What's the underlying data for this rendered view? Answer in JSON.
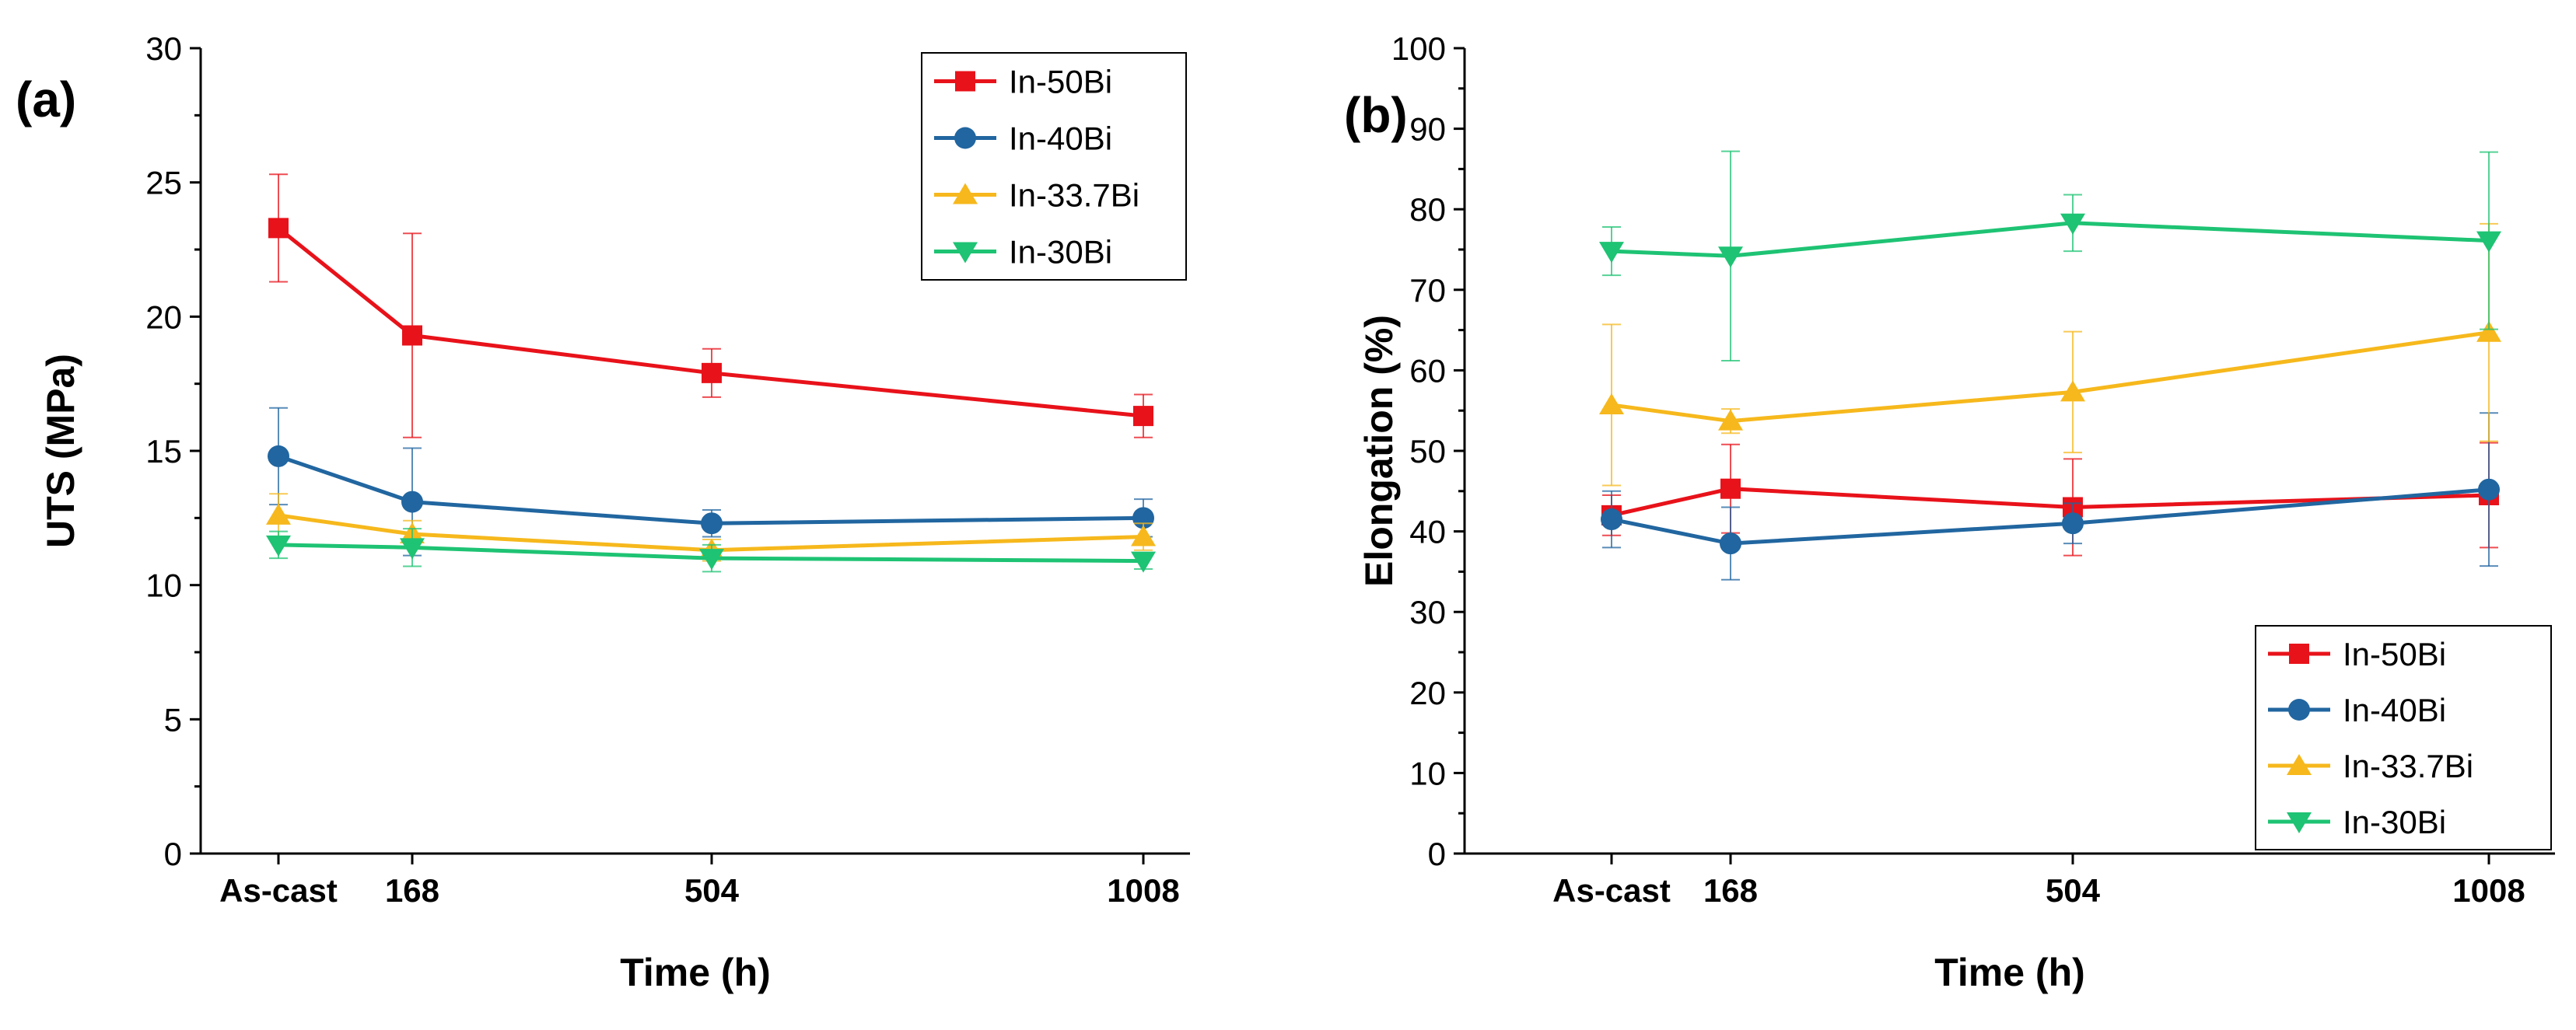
{
  "chart_data": [
    {
      "type": "line",
      "panel_label": "(a)",
      "title": "",
      "xlabel": "Time (h)",
      "ylabel": "UTS (MPa)",
      "x": [
        0,
        168,
        504,
        1008
      ],
      "x_tick_labels": [
        "As-cast",
        "168",
        "504",
        "1008"
      ],
      "ylim": [
        0,
        30
      ],
      "y_ticks": [
        0,
        5,
        10,
        15,
        20,
        25,
        30
      ],
      "legend_position": "top-right",
      "series": [
        {
          "name": "In-50Bi",
          "color": "#e8121a",
          "marker": "square",
          "values": [
            23.3,
            19.3,
            17.9,
            16.3
          ],
          "errors": [
            2.0,
            3.8,
            0.9,
            0.8
          ]
        },
        {
          "name": "In-40Bi",
          "color": "#2166a0",
          "marker": "circle",
          "values": [
            14.8,
            13.1,
            12.3,
            12.5
          ],
          "errors": [
            1.8,
            2.0,
            0.5,
            0.7
          ]
        },
        {
          "name": "In-33.7Bi",
          "color": "#f6b81c",
          "marker": "triangle-up",
          "values": [
            12.6,
            11.9,
            11.3,
            11.8
          ],
          "errors": [
            0.8,
            0.5,
            0.4,
            0.5
          ]
        },
        {
          "name": "In-30Bi",
          "color": "#1ec373",
          "marker": "triangle-down",
          "values": [
            11.5,
            11.4,
            11.0,
            10.9
          ],
          "errors": [
            0.5,
            0.7,
            0.5,
            0.3
          ]
        }
      ]
    },
    {
      "type": "line",
      "panel_label": "(b)",
      "title": "",
      "xlabel": "Time (h)",
      "ylabel": "Elongation (%)",
      "x": [
        0,
        168,
        504,
        1008
      ],
      "x_tick_labels": [
        "As-cast",
        "168",
        "504",
        "1008"
      ],
      "ylim": [
        0,
        100
      ],
      "y_ticks": [
        0,
        10,
        20,
        30,
        40,
        50,
        60,
        70,
        80,
        90,
        100
      ],
      "legend_position": "bottom-right",
      "series": [
        {
          "name": "In-50Bi",
          "color": "#e8121a",
          "marker": "square",
          "values": [
            42,
            45.3,
            43,
            44.5
          ],
          "errors": [
            2.5,
            5.5,
            6,
            6.5
          ]
        },
        {
          "name": "In-40Bi",
          "color": "#2166a0",
          "marker": "circle",
          "values": [
            41.5,
            38.5,
            41,
            45.2
          ],
          "errors": [
            3.5,
            4.5,
            2.5,
            9.5
          ]
        },
        {
          "name": "In-33.7Bi",
          "color": "#f6b81c",
          "marker": "triangle-up",
          "values": [
            55.7,
            53.7,
            57.3,
            64.7
          ],
          "errors": [
            10,
            1.5,
            7.5,
            13.5
          ]
        },
        {
          "name": "In-30Bi",
          "color": "#1ec373",
          "marker": "triangle-down",
          "values": [
            74.8,
            74.2,
            78.3,
            76.1
          ],
          "errors": [
            3,
            13,
            3.5,
            11
          ]
        }
      ]
    }
  ]
}
